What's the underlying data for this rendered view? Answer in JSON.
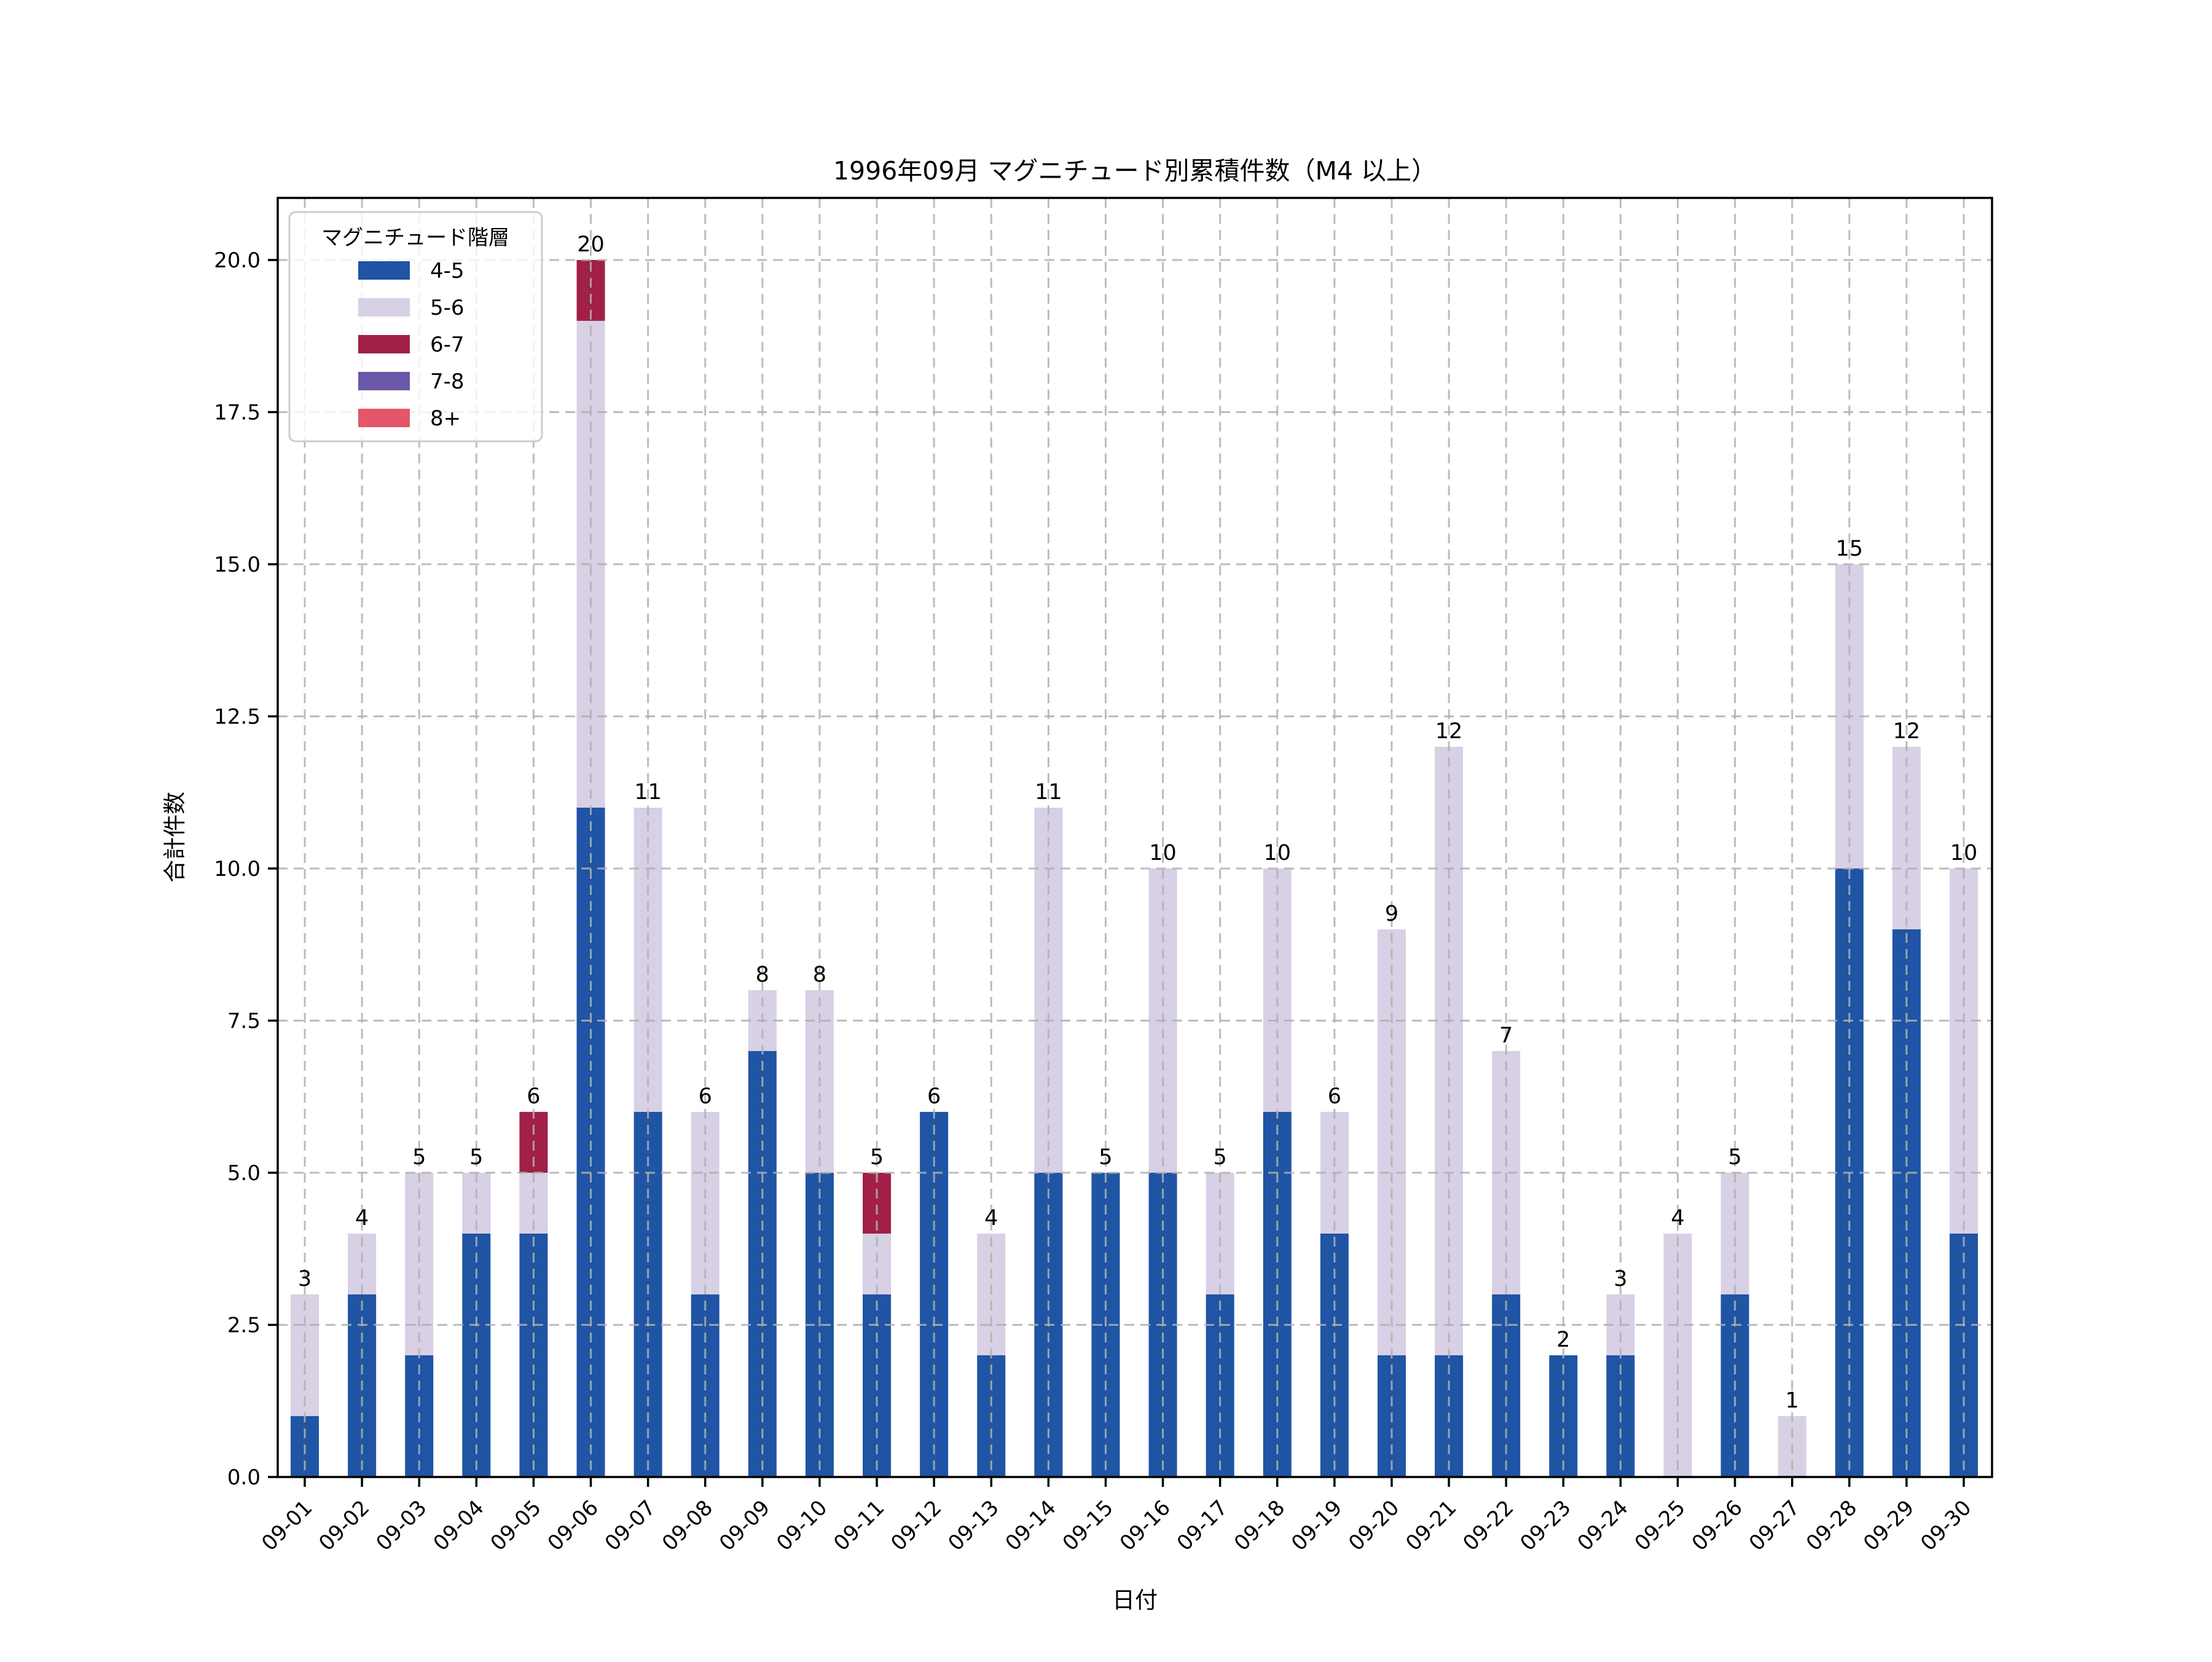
{
  "page": {
    "background": "#ffffff"
  },
  "chart_data": {
    "type": "bar",
    "stacked": true,
    "title": "1996年09月 マグニチュード別累積件数（M4 以上）",
    "xlabel": "日付",
    "ylabel": "合計件数",
    "categories": [
      "09-01",
      "09-02",
      "09-03",
      "09-04",
      "09-05",
      "09-06",
      "09-07",
      "09-08",
      "09-09",
      "09-10",
      "09-11",
      "09-12",
      "09-13",
      "09-14",
      "09-15",
      "09-16",
      "09-17",
      "09-18",
      "09-19",
      "09-20",
      "09-21",
      "09-22",
      "09-23",
      "09-24",
      "09-25",
      "09-26",
      "09-27",
      "09-28",
      "09-29",
      "09-30"
    ],
    "series": [
      {
        "name": "4-5",
        "color": "#2054a4",
        "values": [
          1,
          3,
          2,
          4,
          4,
          11,
          6,
          3,
          7,
          5,
          3,
          6,
          2,
          5,
          5,
          5,
          3,
          6,
          4,
          2,
          2,
          3,
          2,
          2,
          0,
          3,
          0,
          10,
          9,
          4
        ]
      },
      {
        "name": "5-6",
        "color": "#d8d0e5",
        "values": [
          2,
          1,
          3,
          1,
          1,
          8,
          5,
          3,
          1,
          3,
          1,
          0,
          2,
          6,
          0,
          5,
          2,
          4,
          2,
          7,
          10,
          4,
          0,
          1,
          4,
          2,
          1,
          5,
          3,
          6
        ]
      },
      {
        "name": "6-7",
        "color": "#a12047",
        "values": [
          0,
          0,
          0,
          0,
          1,
          1,
          0,
          0,
          0,
          0,
          1,
          0,
          0,
          0,
          0,
          0,
          0,
          0,
          0,
          0,
          0,
          0,
          0,
          0,
          0,
          0,
          0,
          0,
          0,
          0
        ]
      },
      {
        "name": "7-8",
        "color": "#6b57a7",
        "values": [
          0,
          0,
          0,
          0,
          0,
          0,
          0,
          0,
          0,
          0,
          0,
          0,
          0,
          0,
          0,
          0,
          0,
          0,
          0,
          0,
          0,
          0,
          0,
          0,
          0,
          0,
          0,
          0,
          0,
          0
        ]
      },
      {
        "name": "8+",
        "color": "#e4576a",
        "values": [
          0,
          0,
          0,
          0,
          0,
          0,
          0,
          0,
          0,
          0,
          0,
          0,
          0,
          0,
          0,
          0,
          0,
          0,
          0,
          0,
          0,
          0,
          0,
          0,
          0,
          0,
          0,
          0,
          0,
          0
        ]
      }
    ],
    "totals": [
      3,
      4,
      5,
      5,
      6,
      20,
      11,
      6,
      8,
      8,
      5,
      6,
      4,
      11,
      5,
      10,
      5,
      10,
      6,
      9,
      12,
      7,
      2,
      3,
      4,
      5,
      1,
      15,
      12,
      10
    ],
    "y_ticks": [
      0.0,
      2.5,
      5.0,
      7.5,
      10.0,
      12.5,
      15.0,
      17.5,
      20.0
    ],
    "ylim": [
      0,
      21.02
    ],
    "grid": true,
    "grid_color": "#b0b0b0",
    "axis_color": "#000000",
    "legend": {
      "title": "マグニチュード階層",
      "position": "upper left",
      "entries": [
        "4-5",
        "5-6",
        "6-7",
        "7-8",
        "8+"
      ]
    }
  }
}
